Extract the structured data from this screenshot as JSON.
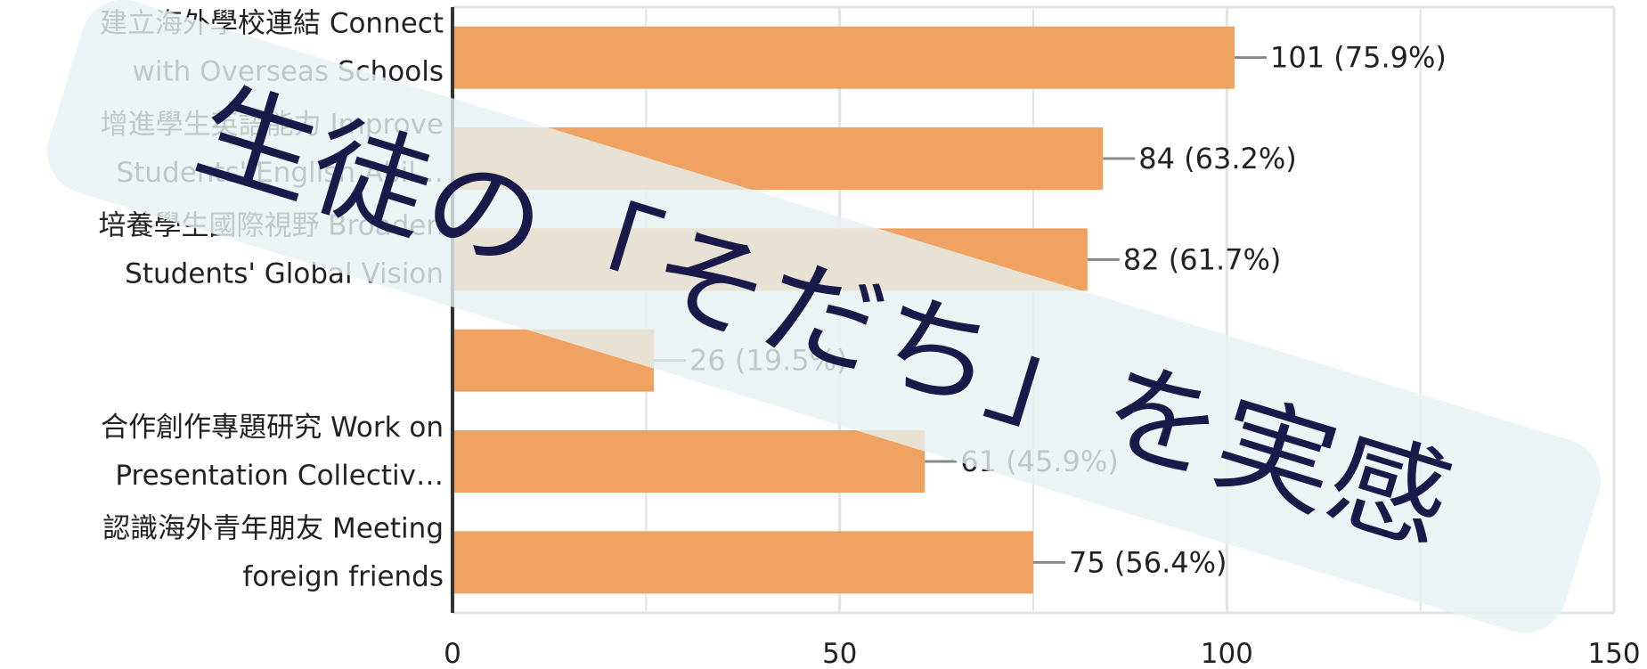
{
  "chart_data": {
    "type": "bar",
    "orientation": "horizontal",
    "categories": [
      [
        "建立海外學校連結 Connect",
        "with Overseas Schools"
      ],
      [
        "增進學生英語能力 Improve",
        "Students' English Abil…"
      ],
      [
        "培養學生國際視野 Broaden",
        "Students' Global Vision"
      ],
      [
        "",
        ""
      ],
      [
        "合作創作專題研究 Work on",
        "Presentation Collectiv…"
      ],
      [
        "認識海外青年朋友 Meeting",
        "foreign friends"
      ]
    ],
    "values": [
      101,
      84,
      82,
      26,
      61,
      75
    ],
    "value_labels": [
      "101 (75.9%)",
      "84 (63.2%)",
      "82 (61.7%)",
      "26 (19.5%)",
      "61 (45.9%)",
      "75 (56.4%)"
    ],
    "xlim": [
      0,
      150
    ],
    "xticks": [
      0,
      50,
      100,
      150
    ],
    "grid": true,
    "bar_color": "#f0a262",
    "title": "",
    "xlabel": "",
    "ylabel": ""
  },
  "overlay": {
    "text": "生徒の「そだち」を実感",
    "band_color": "#e6f3f2",
    "text_color": "#1a1a4a"
  }
}
